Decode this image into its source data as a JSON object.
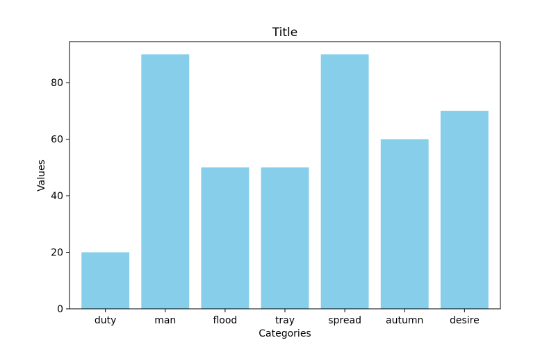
{
  "chart_data": {
    "type": "bar",
    "title": "Title",
    "xlabel": "Categories",
    "ylabel": "Values",
    "categories": [
      "duty",
      "man",
      "flood",
      "tray",
      "spread",
      "autumn",
      "desire"
    ],
    "values": [
      20,
      90,
      50,
      50,
      90,
      60,
      70
    ],
    "ylim": [
      0,
      94.5
    ],
    "yticks": [
      0,
      20,
      40,
      60,
      80
    ],
    "bar_color": "#87ceeb",
    "grid": false,
    "legend": "none"
  }
}
